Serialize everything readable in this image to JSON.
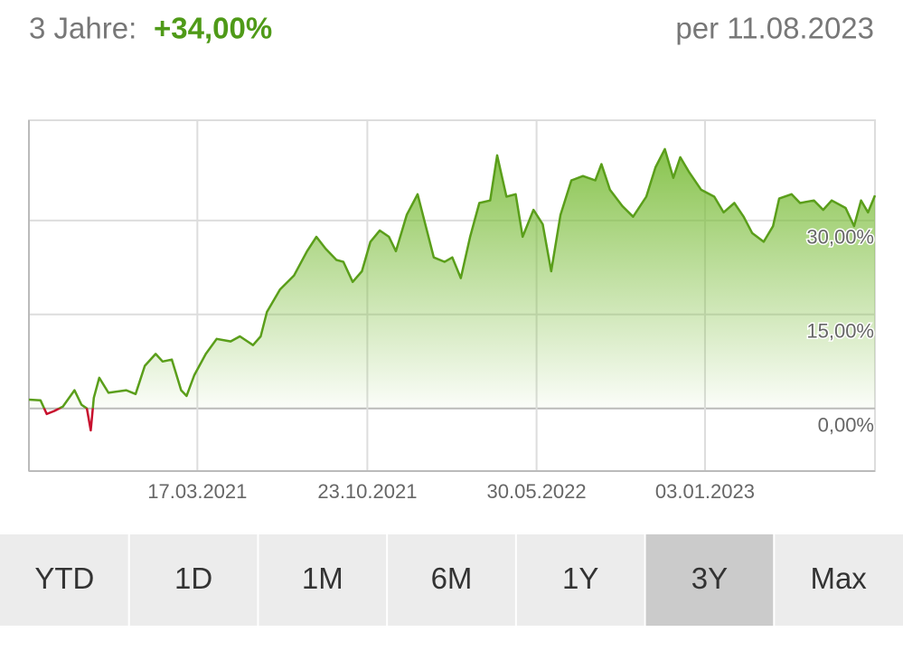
{
  "header": {
    "period_label": "3 Jahre:",
    "change": "+34,00%",
    "as_of": "per 11.08.2023"
  },
  "chart_data": {
    "type": "area",
    "x": [
      "11.08.2020",
      "26.08.2020",
      "03.09.2020",
      "13.09.2020",
      "24.09.2020",
      "09.10.2020",
      "18.10.2020",
      "25.10.2020",
      "30.10.2020",
      "03.11.2020",
      "10.11.2020",
      "22.11.2020",
      "15.12.2020",
      "27.12.2020",
      "08.01.2021",
      "22.01.2021",
      "31.01.2021",
      "12.02.2021",
      "24.02.2021",
      "03.03.2021",
      "13.03.2021",
      "28.03.2021",
      "11.04.2021",
      "29.04.2021",
      "11.05.2021",
      "28.05.2021",
      "07.06.2021",
      "15.06.2021",
      "02.07.2021",
      "20.07.2021",
      "06.08.2021",
      "18.08.2021",
      "30.08.2021",
      "13.09.2021",
      "22.09.2021",
      "04.10.2021",
      "16.10.2021",
      "27.10.2021",
      "08.11.2021",
      "20.11.2021",
      "29.11.2021",
      "13.12.2021",
      "27.12.2021",
      "06.01.2022",
      "17.01.2022",
      "31.01.2022",
      "10.02.2022",
      "21.02.2022",
      "05.03.2022",
      "17.03.2022",
      "31.03.2022",
      "09.04.2022",
      "21.04.2022",
      "03.05.2022",
      "12.05.2022",
      "26.05.2022",
      "07.06.2022",
      "18.06.2022",
      "30.06.2022",
      "14.07.2022",
      "29.07.2022",
      "14.08.2022",
      "22.08.2022",
      "02.09.2022",
      "18.09.2022",
      "02.10.2022",
      "19.10.2022",
      "31.10.2022",
      "12.11.2022",
      "23.11.2022",
      "02.12.2022",
      "13.12.2022",
      "29.12.2022",
      "15.01.2023",
      "27.01.2023",
      "10.02.2023",
      "22.02.2023",
      "05.03.2023",
      "20.03.2023",
      "01.04.2023",
      "09.04.2023",
      "25.04.2023",
      "06.05.2023",
      "24.05.2023",
      "05.06.2023",
      "16.06.2023",
      "04.07.2023",
      "15.07.2023",
      "24.07.2023",
      "02.08.2023",
      "11.08.2023"
    ],
    "series": [
      {
        "color": "#5a9e1a",
        "negative_color": "#c8102e",
        "fill_color": "#7bbd3a",
        "values": [
          1.4,
          1.3,
          -0.9,
          -0.4,
          0.3,
          2.9,
          0.6,
          0,
          -3.5,
          1.7,
          4.9,
          2.5,
          2.9,
          2.3,
          6.8,
          8.7,
          7.5,
          7.8,
          2.9,
          2.0,
          5.3,
          8.7,
          11.1,
          10.7,
          11.5,
          10.1,
          11.5,
          15.4,
          19.0,
          21.2,
          25.1,
          27.4,
          25.5,
          23.7,
          23.4,
          20.2,
          21.9,
          26.6,
          28.4,
          27.4,
          25.1,
          30.9,
          34.2,
          29.4,
          24.1,
          23.4,
          24.1,
          20.8,
          27.4,
          32.8,
          33.2,
          40.4,
          33.8,
          34.2,
          27.4,
          31.7,
          29.4,
          21.9,
          30.9,
          36.4,
          37.1,
          36.4,
          39.0,
          34.9,
          32.3,
          30.6,
          33.8,
          38.5,
          41.4,
          36.8,
          40.1,
          37.8,
          34.9,
          33.8,
          31.3,
          32.8,
          30.6,
          28.0,
          26.6,
          29.1,
          33.5,
          34.2,
          32.8,
          33.2,
          31.7,
          33.2,
          32.0,
          29.1,
          33.2,
          31.3,
          34.0
        ]
      }
    ],
    "xlim": [
      "11.08.2020",
      "11.08.2023"
    ],
    "xticks": [
      "17.03.2021",
      "23.10.2021",
      "30.05.2022",
      "03.01.2023"
    ],
    "ylim": [
      -10,
      46
    ],
    "yticks": [
      {
        "value": 0,
        "label": "0,00%"
      },
      {
        "value": 15,
        "label": "15,00%"
      },
      {
        "value": 30,
        "label": "30,00%"
      }
    ],
    "grid": true
  },
  "buttons": [
    "YTD",
    "1D",
    "1M",
    "6M",
    "1Y",
    "3Y",
    "Max"
  ],
  "selected_button": 5
}
